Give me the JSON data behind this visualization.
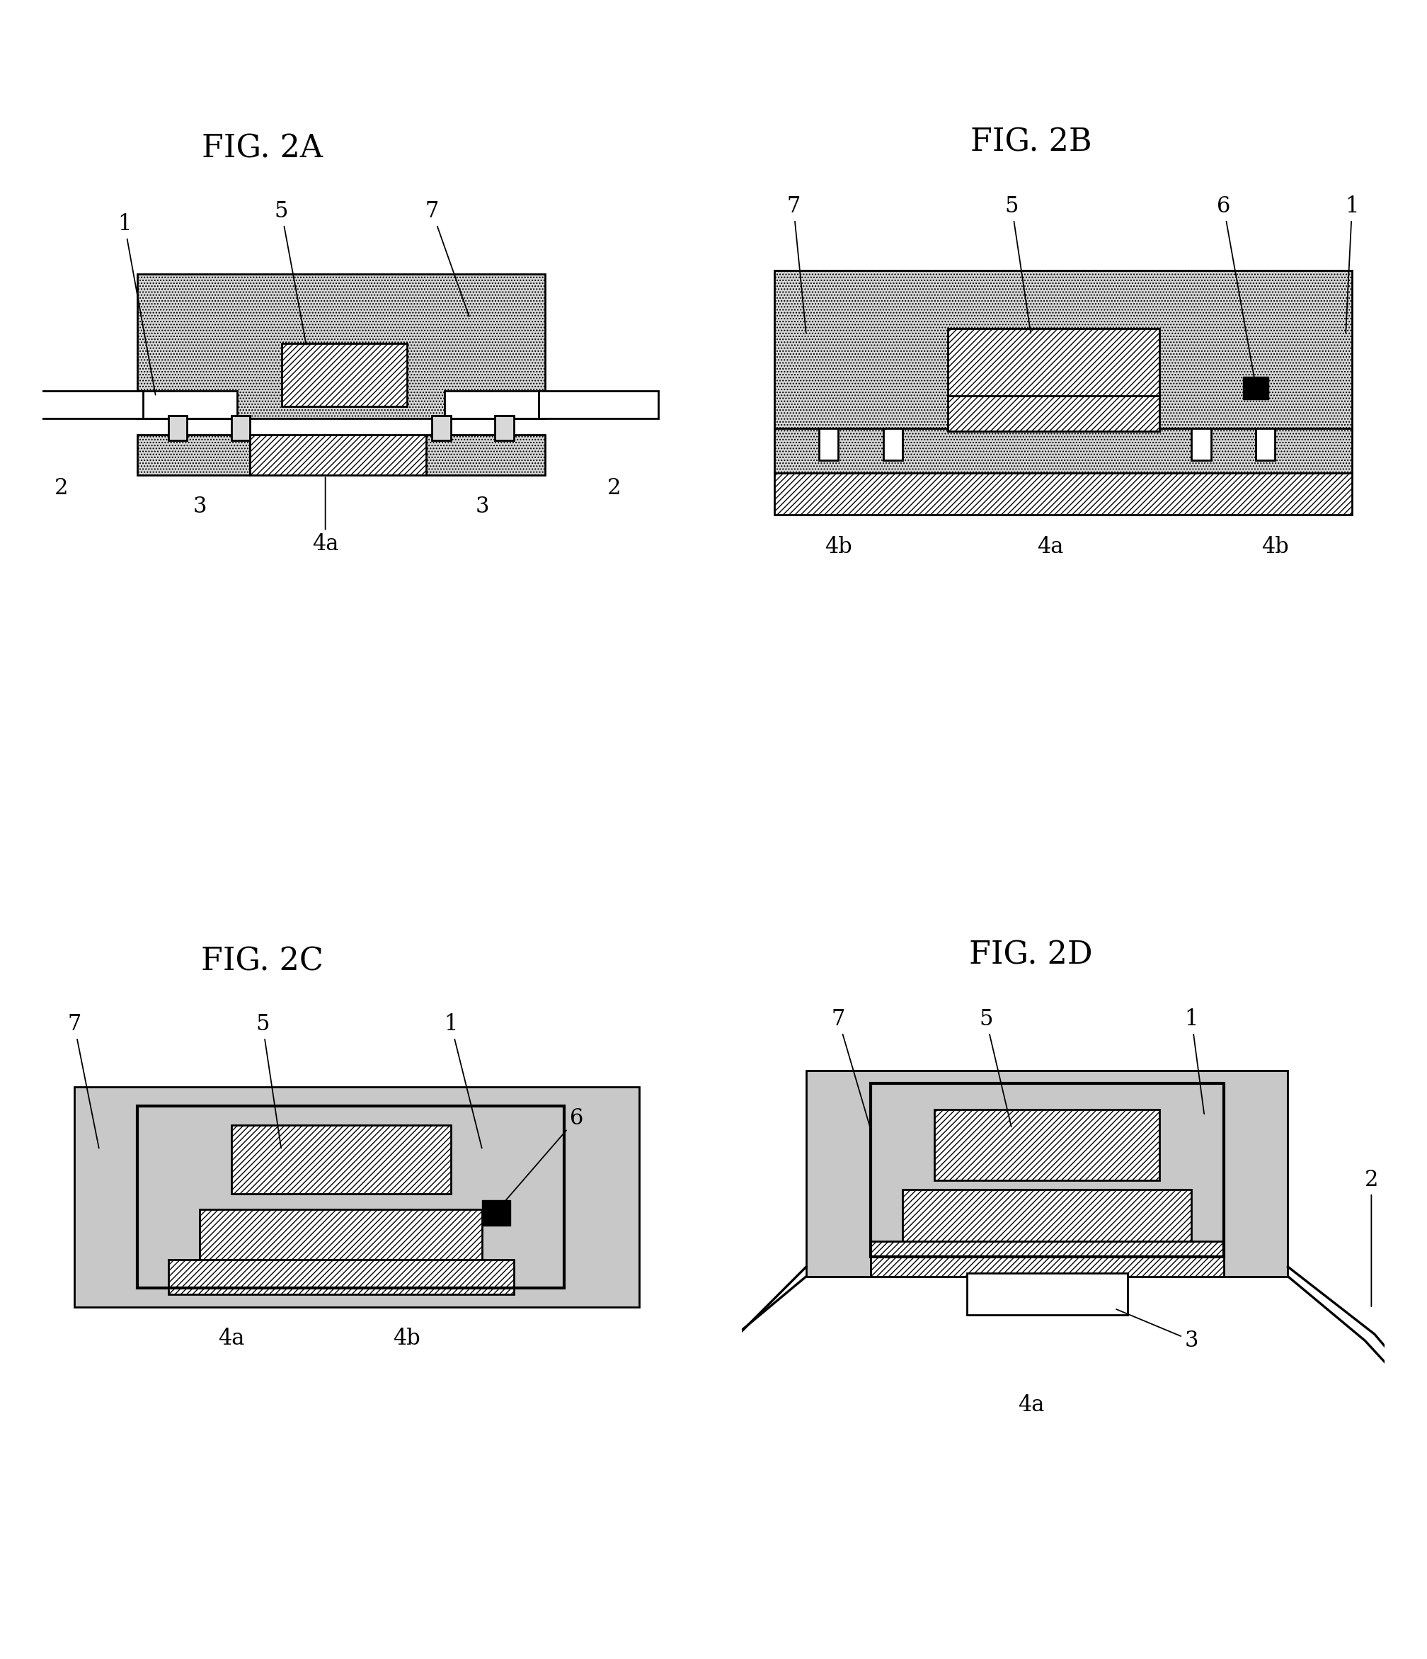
{
  "background_color": "#ffffff",
  "fig_labels": [
    "FIG. 2A",
    "FIG. 2B",
    "FIG. 2C",
    "FIG. 2D"
  ],
  "fig_label_fontsize": 32,
  "annotation_fontsize": 22,
  "line_width": 2.0,
  "dot_color": "#d8d8d8",
  "gray_color": "#c8c8c8",
  "hatch_color": "white"
}
